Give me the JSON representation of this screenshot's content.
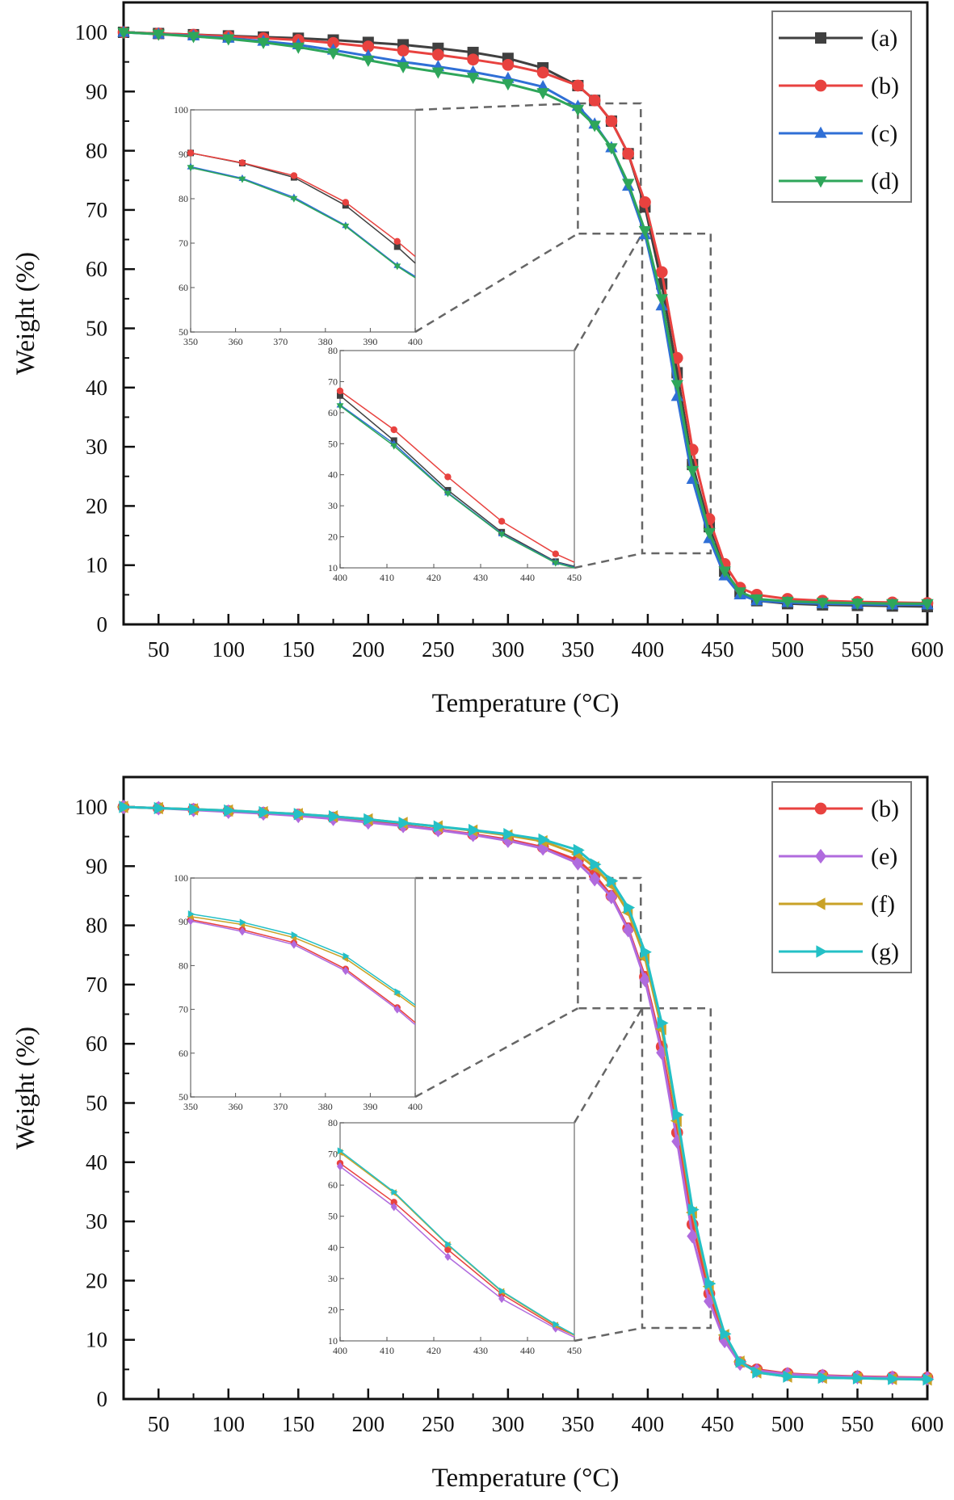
{
  "chart_data": [
    {
      "type": "line",
      "title": "",
      "xlabel": "Temperature (°C)",
      "ylabel": "Weight (%)",
      "xlim": [
        25,
        600
      ],
      "ylim": [
        0,
        105
      ],
      "xticks": [
        50,
        100,
        150,
        200,
        250,
        300,
        350,
        400,
        450,
        500,
        550,
        600
      ],
      "yticks": [
        0,
        10,
        20,
        30,
        40,
        50,
        60,
        70,
        80,
        90,
        100
      ],
      "legend_position": "top-right",
      "x": [
        25,
        50,
        75,
        100,
        125,
        150,
        175,
        200,
        225,
        250,
        275,
        300,
        325,
        350,
        362,
        374,
        386,
        398,
        410,
        421,
        432,
        444,
        455,
        466,
        478,
        500,
        525,
        550,
        575,
        600
      ],
      "series": [
        {
          "name": "(a)",
          "color": "#404040",
          "marker": "square",
          "values": [
            100,
            99.8,
            99.6,
            99.4,
            99.2,
            99.0,
            98.7,
            98.3,
            97.9,
            97.3,
            96.6,
            95.6,
            94.0,
            91.0,
            88.5,
            85.0,
            79.5,
            70.5,
            57.5,
            42.5,
            27.0,
            16.5,
            9.0,
            5.5,
            4.0,
            3.5,
            3.3,
            3.2,
            3.1,
            3.0
          ]
        },
        {
          "name": "(b)",
          "color": "#e8423f",
          "marker": "circle",
          "values": [
            100,
            99.8,
            99.6,
            99.3,
            99.0,
            98.7,
            98.2,
            97.6,
            96.9,
            96.2,
            95.4,
            94.5,
            93.2,
            91.0,
            88.5,
            85.0,
            79.5,
            71.3,
            59.5,
            45.0,
            29.5,
            17.8,
            10.2,
            6.2,
            5.0,
            4.3,
            4.0,
            3.8,
            3.7,
            3.6
          ]
        },
        {
          "name": "(c)",
          "color": "#2f6fd6",
          "marker": "triangle-up",
          "values": [
            100,
            99.7,
            99.4,
            99.0,
            98.5,
            97.9,
            97.0,
            96.0,
            95.0,
            94.2,
            93.3,
            92.2,
            90.8,
            87.5,
            84.5,
            80.5,
            74.0,
            65.8,
            53.8,
            38.5,
            24.5,
            14.5,
            8.2,
            5.0,
            4.0,
            3.7,
            3.5,
            3.4,
            3.3,
            3.3
          ]
        },
        {
          "name": "(d)",
          "color": "#2ea65a",
          "marker": "triangle-down",
          "values": [
            100,
            99.7,
            99.3,
            98.9,
            98.3,
            97.5,
            96.5,
            95.3,
            94.2,
            93.3,
            92.4,
            91.3,
            89.8,
            87.0,
            84.3,
            80.5,
            74.5,
            66.5,
            55.0,
            40.5,
            26.0,
            15.5,
            9.0,
            5.5,
            4.3,
            3.9,
            3.7,
            3.6,
            3.5,
            3.5
          ]
        }
      ],
      "insets": [
        {
          "xlim": [
            350,
            400
          ],
          "ylim": [
            50,
            100
          ],
          "xticks": [
            350,
            360,
            370,
            380,
            390,
            400
          ],
          "yticks": [
            50,
            60,
            70,
            80,
            90,
            100
          ],
          "x": [
            350,
            361.5,
            373,
            384.5,
            396,
            400
          ],
          "series": {
            "(a)": [
              90.3,
              88.0,
              84.8,
              78.5,
              69.2,
              65.5
            ],
            "(b)": [
              90.3,
              88.1,
              85.2,
              79.2,
              70.4,
              67.0
            ],
            "(c)": [
              87.2,
              84.6,
              80.3,
              74.0,
              65.0,
              62.5
            ],
            "(d)": [
              87.0,
              84.4,
              80.0,
              73.8,
              64.8,
              62.2
            ]
          },
          "zoom_box": {
            "x": [
              350,
              395
            ],
            "y": [
              66,
              88
            ]
          }
        },
        {
          "xlim": [
            400,
            450
          ],
          "ylim": [
            10,
            80
          ],
          "xticks": [
            400,
            410,
            420,
            430,
            440,
            450
          ],
          "yticks": [
            10,
            20,
            30,
            40,
            50,
            60,
            70,
            80
          ],
          "x": [
            400,
            411.5,
            423,
            434.5,
            446,
            450
          ],
          "series": {
            "(a)": [
              65.5,
              51.0,
              35.0,
              21.5,
              12.0,
              10.5
            ],
            "(b)": [
              67.0,
              54.5,
              39.3,
              25.0,
              14.5,
              11.8
            ],
            "(c)": [
              62.5,
              50.0,
              34.2,
              21.0,
              11.8,
              10.2
            ],
            "(d)": [
              62.2,
              49.3,
              34.0,
              20.8,
              11.6,
              10.0
            ]
          },
          "zoom_box": {
            "x": [
              396,
              445
            ],
            "y": [
              12,
              66
            ]
          }
        }
      ]
    },
    {
      "type": "line",
      "title": "",
      "xlabel": "Temperature (°C)",
      "ylabel": "Weight (%)",
      "xlim": [
        25,
        600
      ],
      "ylim": [
        0,
        105
      ],
      "xticks": [
        50,
        100,
        150,
        200,
        250,
        300,
        350,
        400,
        450,
        500,
        550,
        600
      ],
      "yticks": [
        0,
        10,
        20,
        30,
        40,
        50,
        60,
        70,
        80,
        90,
        100
      ],
      "legend_position": "top-right",
      "x": [
        25,
        50,
        75,
        100,
        125,
        150,
        175,
        200,
        225,
        250,
        275,
        300,
        325,
        350,
        362,
        374,
        386,
        398,
        410,
        421,
        432,
        444,
        455,
        466,
        478,
        500,
        525,
        550,
        575,
        600
      ],
      "series": [
        {
          "name": "(b)",
          "color": "#e8423f",
          "marker": "circle",
          "values": [
            100,
            99.8,
            99.6,
            99.3,
            99.0,
            98.7,
            98.2,
            97.6,
            96.9,
            96.2,
            95.4,
            94.5,
            93.2,
            91.0,
            88.5,
            85.0,
            79.5,
            71.3,
            59.5,
            45.0,
            29.5,
            17.8,
            10.2,
            6.2,
            5.0,
            4.3,
            4.0,
            3.8,
            3.7,
            3.6
          ]
        },
        {
          "name": "(e)",
          "color": "#b06bde",
          "marker": "diamond",
          "values": [
            100,
            99.8,
            99.5,
            99.2,
            98.9,
            98.5,
            98.0,
            97.4,
            96.8,
            96.1,
            95.3,
            94.3,
            93.0,
            90.5,
            87.8,
            84.8,
            79.2,
            70.8,
            58.5,
            43.5,
            27.5,
            16.5,
            9.8,
            6.0,
            4.8,
            4.2,
            3.9,
            3.7,
            3.6,
            3.5
          ]
        },
        {
          "name": "(f)",
          "color": "#c9a227",
          "marker": "triangle-left",
          "values": [
            100,
            99.8,
            99.6,
            99.4,
            99.1,
            98.8,
            98.4,
            97.9,
            97.3,
            96.7,
            96.0,
            95.2,
            94.2,
            92.0,
            89.8,
            86.8,
            82.2,
            74.5,
            62.5,
            47.0,
            31.5,
            19.0,
            10.8,
            6.3,
            4.5,
            3.8,
            3.6,
            3.5,
            3.4,
            3.3
          ]
        },
        {
          "name": "(g)",
          "color": "#24c0c6",
          "marker": "triangle-right",
          "values": [
            100,
            99.8,
            99.6,
            99.4,
            99.1,
            98.8,
            98.4,
            97.9,
            97.3,
            96.7,
            96.1,
            95.4,
            94.5,
            92.7,
            90.3,
            87.5,
            83.0,
            75.5,
            63.5,
            48.0,
            32.0,
            19.5,
            11.0,
            6.3,
            4.5,
            3.8,
            3.6,
            3.5,
            3.4,
            3.3
          ]
        }
      ],
      "insets": [
        {
          "xlim": [
            350,
            400
          ],
          "ylim": [
            50,
            100
          ],
          "xticks": [
            350,
            360,
            370,
            380,
            390,
            400
          ],
          "yticks": [
            50,
            60,
            70,
            80,
            90,
            100
          ],
          "x": [
            350,
            361.5,
            373,
            384.5,
            396,
            400
          ],
          "series": {
            "(b)": [
              90.5,
              88.2,
              85.2,
              79.2,
              70.4,
              67.0
            ],
            "(e)": [
              90.2,
              87.8,
              84.8,
              78.8,
              70.0,
              66.5
            ],
            "(f)": [
              91.2,
              89.4,
              86.4,
              81.6,
              73.5,
              70.5
            ],
            "(g)": [
              91.8,
              89.9,
              87.0,
              82.2,
              74.0,
              71.0
            ]
          },
          "zoom_box": {
            "x": [
              350,
              395
            ],
            "y": [
              66,
              88
            ]
          }
        },
        {
          "xlim": [
            400,
            450
          ],
          "ylim": [
            10,
            80
          ],
          "xticks": [
            400,
            410,
            420,
            430,
            440,
            450
          ],
          "yticks": [
            10,
            20,
            30,
            40,
            50,
            60,
            70,
            80
          ],
          "x": [
            400,
            411.5,
            423,
            434.5,
            446,
            450
          ],
          "series": {
            "(b)": [
              67.0,
              54.5,
              39.3,
              25.0,
              14.5,
              11.8
            ],
            "(e)": [
              66.0,
              53.0,
              37.0,
              23.5,
              14.0,
              11.2
            ],
            "(f)": [
              70.5,
              57.5,
              40.8,
              25.8,
              15.0,
              11.8
            ],
            "(g)": [
              71.0,
              57.8,
              41.0,
              26.0,
              15.3,
              12.0
            ]
          },
          "zoom_box": {
            "x": [
              396,
              445
            ],
            "y": [
              12,
              66
            ]
          }
        }
      ]
    }
  ]
}
